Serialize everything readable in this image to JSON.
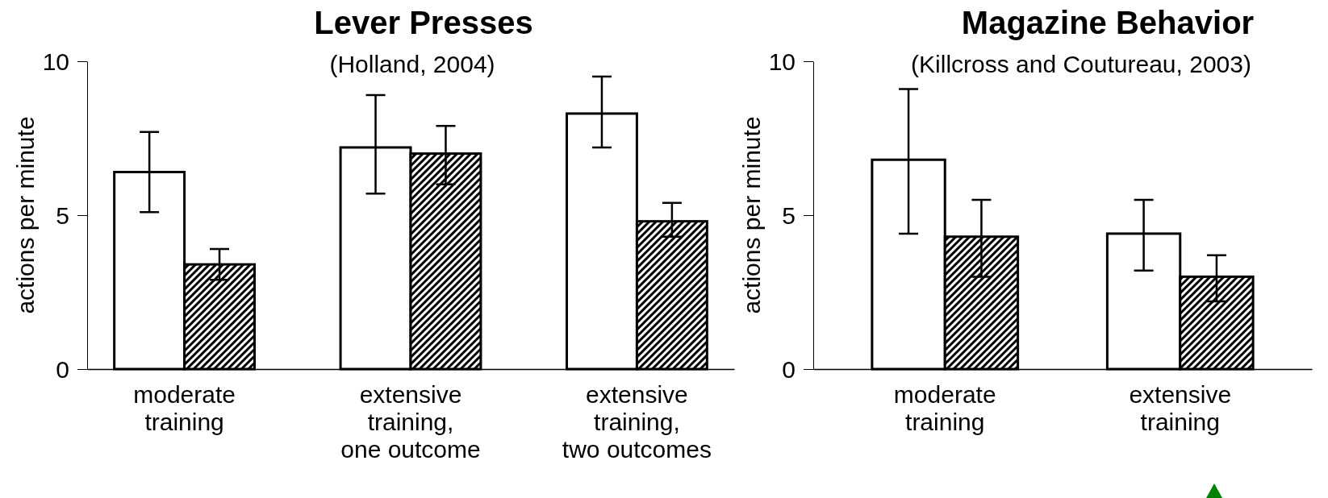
{
  "chart_data": [
    {
      "type": "bar",
      "title": "Lever Presses",
      "subtitle": "(Holland, 2004)",
      "ylabel": "actions per minute",
      "categories": [
        "moderate\ntraining",
        "extensive\ntraining,\none outcome",
        "extensive\ntraining,\ntwo outcomes"
      ],
      "ylim": [
        0,
        10
      ],
      "yticks": [
        0,
        5,
        10
      ],
      "grid": false,
      "series": [
        {
          "color": "#ffffff",
          "values": [
            6.4,
            7.2,
            8.3
          ],
          "errors": [
            [
              5.1,
              7.7
            ],
            [
              5.7,
              8.9
            ],
            [
              7.2,
              9.5
            ]
          ]
        },
        {
          "color": "#000000",
          "values": [
            3.4,
            7.0,
            4.8
          ],
          "errors": [
            [
              2.9,
              3.9
            ],
            [
              6.0,
              7.9
            ],
            [
              4.3,
              5.4
            ]
          ]
        }
      ]
    },
    {
      "type": "bar",
      "title": "Magazine Behavior",
      "subtitle": "(Killcross and Coutureau, 2003)",
      "ylabel": "actions per minute",
      "categories": [
        "moderate\ntraining",
        "extensive\ntraining"
      ],
      "ylim": [
        0,
        10
      ],
      "yticks": [
        0,
        5,
        10
      ],
      "grid": false,
      "series": [
        {
          "color": "#ffffff",
          "values": [
            6.8,
            4.4
          ],
          "errors": [
            [
              4.4,
              9.1
            ],
            [
              3.2,
              5.5
            ]
          ]
        },
        {
          "color": "#000000",
          "values": [
            4.3,
            3.0
          ],
          "errors": [
            [
              3.0,
              5.5
            ],
            [
              2.2,
              3.7
            ]
          ]
        }
      ]
    }
  ]
}
